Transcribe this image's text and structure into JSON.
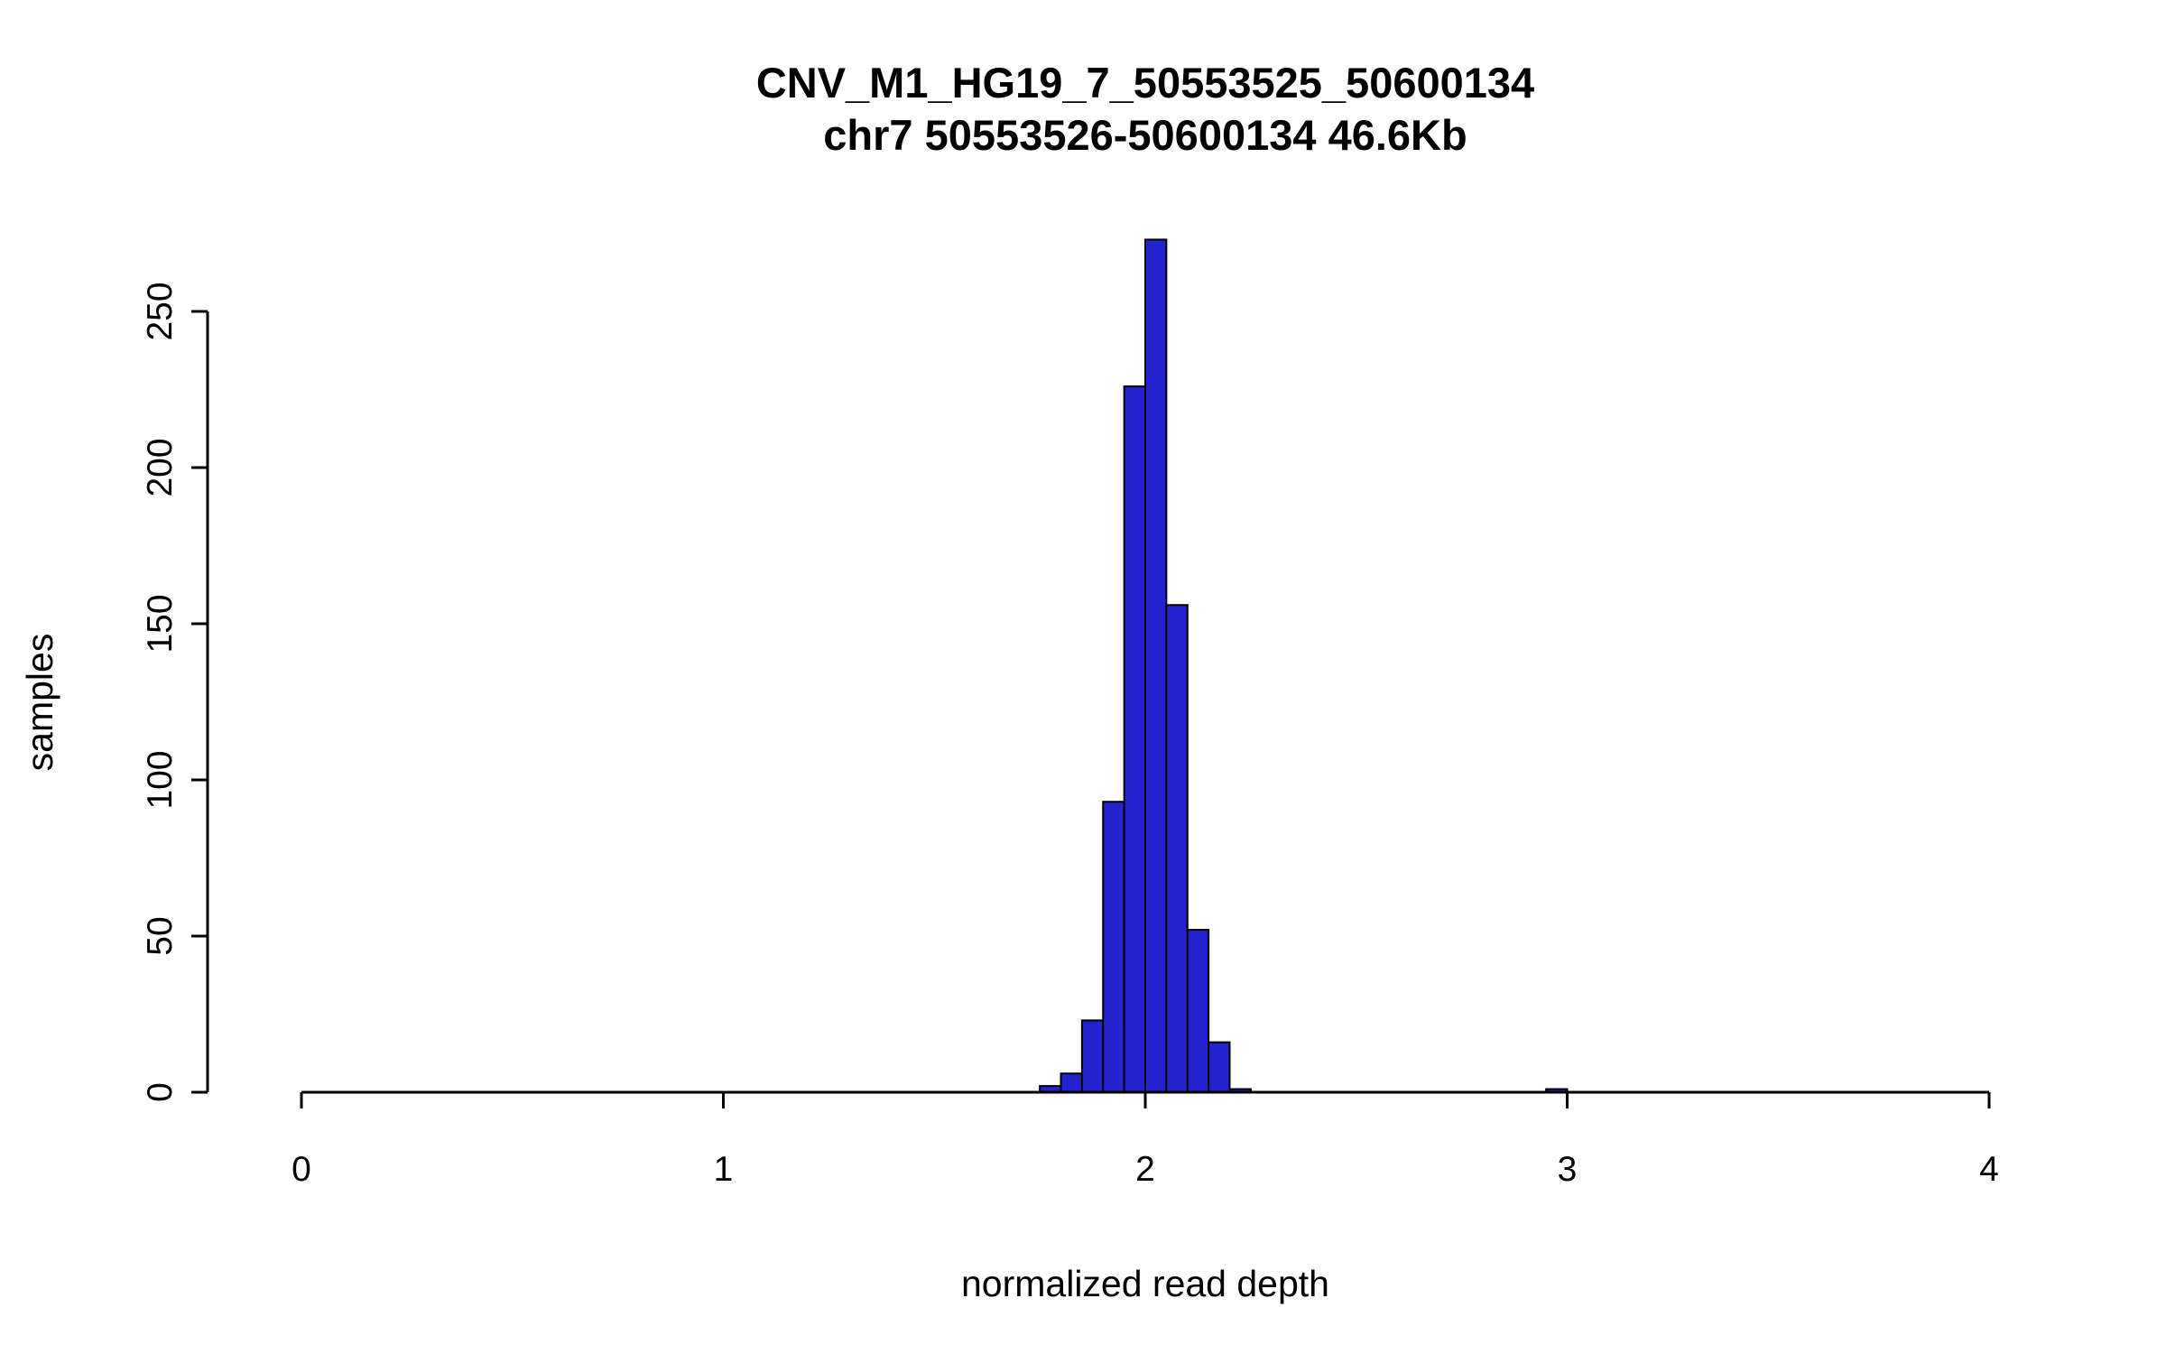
{
  "chart_data": {
    "type": "bar",
    "title": "CNV_M1_HG19_7_50553525_50600134",
    "subtitle": "chr7 50553526-50600134 46.6Kb",
    "xlabel": "normalized read depth",
    "ylabel": "samples",
    "xlim": [
      0,
      4
    ],
    "ylim": [
      0,
      250
    ],
    "x_ticks": [
      0,
      1,
      2,
      3,
      4
    ],
    "y_ticks": [
      0,
      50,
      100,
      150,
      200,
      250
    ],
    "grid": false,
    "legend": "none",
    "bar_color": "#2222CE",
    "bar_border": "#000000",
    "axis_color": "#000000",
    "bin_width": 0.05,
    "bins": [
      {
        "start": 1.75,
        "count": 2
      },
      {
        "start": 1.8,
        "count": 6
      },
      {
        "start": 1.85,
        "count": 23
      },
      {
        "start": 1.9,
        "count": 93
      },
      {
        "start": 1.95,
        "count": 226
      },
      {
        "start": 2.0,
        "count": 273
      },
      {
        "start": 2.05,
        "count": 156
      },
      {
        "start": 2.1,
        "count": 52
      },
      {
        "start": 2.15,
        "count": 16
      },
      {
        "start": 2.2,
        "count": 1
      },
      {
        "start": 2.95,
        "count": 1
      }
    ]
  }
}
